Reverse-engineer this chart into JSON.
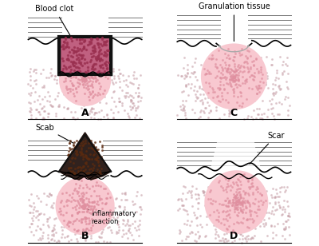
{
  "title": "",
  "background_color": "#ffffff",
  "panels": [
    "A",
    "B",
    "C",
    "D"
  ],
  "labels": {
    "A": "Blood clot",
    "B_scab": "Scab",
    "B_inflam": "Inflammatory\nreaction",
    "C": "Granulation tissue",
    "D": "Scar"
  },
  "skin_color": "#f5e6d0",
  "pink_color": "#f0b0c0",
  "dark_red": "#8b1a1a",
  "scab_color": "#2a1a0a",
  "line_color": "#333333",
  "dot_color": "#c0a0a0",
  "tissue_pink": "#f8c8d0"
}
